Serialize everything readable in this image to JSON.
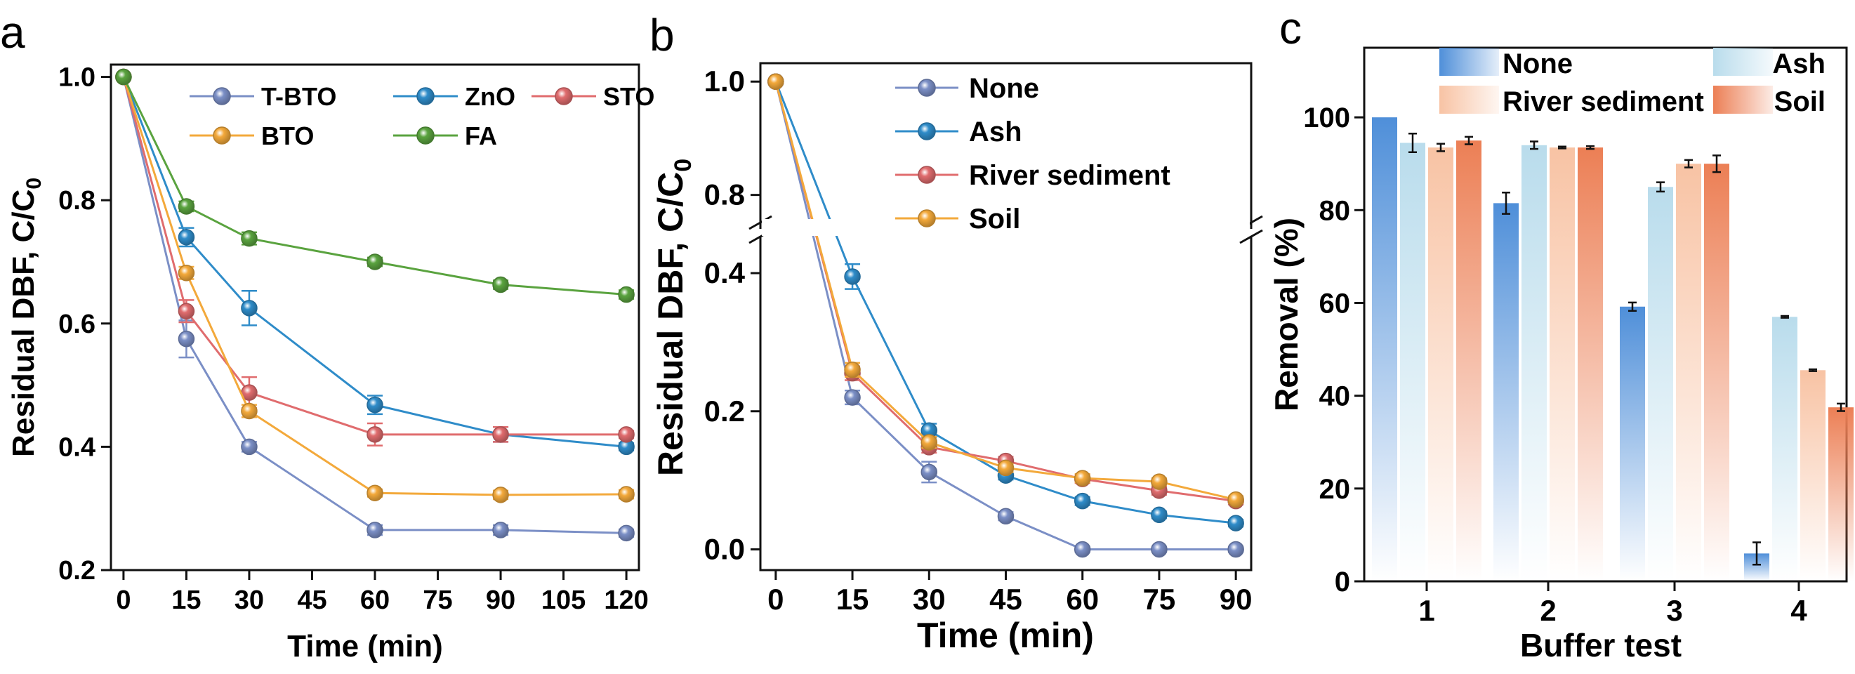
{
  "panels": {
    "a": {
      "label": "a"
    },
    "b": {
      "label": "b"
    },
    "c": {
      "label": "c"
    }
  },
  "chart_data": [
    {
      "id": "a",
      "type": "line",
      "xlabel": "Time (min)",
      "ylabel": "Residual DBF, C/C",
      "ylabel_sub": "0",
      "xlim": [
        -3,
        123
      ],
      "ylim": [
        0.2,
        1.02
      ],
      "xticks": [
        0,
        15,
        30,
        45,
        60,
        75,
        90,
        105,
        120
      ],
      "yticks": [
        0.2,
        0.4,
        0.6,
        0.8,
        1.0
      ],
      "ytick_labels": [
        "0.2",
        "0.4",
        "0.6",
        "0.8",
        "1.0"
      ],
      "x": [
        0,
        15,
        30,
        60,
        90,
        120
      ],
      "series": [
        {
          "name": "T-BTO",
          "color": "#7b8fc6",
          "values": [
            1.0,
            0.575,
            0.4,
            0.265,
            0.265,
            0.26
          ],
          "err": [
            0,
            0.03,
            0.008,
            0.008,
            0.008,
            0.006
          ]
        },
        {
          "name": "ZnO",
          "color": "#2f8cc9",
          "values": [
            1.0,
            0.74,
            0.625,
            0.468,
            0.42,
            0.4
          ],
          "err": [
            0,
            0.015,
            0.028,
            0.015,
            0.012,
            0.006
          ]
        },
        {
          "name": "STO",
          "color": "#e06c6e",
          "values": [
            1.0,
            0.62,
            0.488,
            0.42,
            0.42,
            0.42
          ],
          "err": [
            0,
            0.018,
            0.025,
            0.018,
            0.012,
            0.006
          ]
        },
        {
          "name": "BTO",
          "color": "#f3a93b",
          "values": [
            1.0,
            0.682,
            0.458,
            0.325,
            0.322,
            0.323
          ],
          "err": [
            0,
            0.01,
            0.01,
            0.006,
            0.007,
            0.007
          ]
        },
        {
          "name": "FA",
          "color": "#5aa33f",
          "values": [
            1.0,
            0.79,
            0.738,
            0.7,
            0.663,
            0.647
          ],
          "err": [
            0,
            0.008,
            0.01,
            0.007,
            0.007,
            0.007
          ]
        }
      ],
      "legend": [
        {
          "name": "T-BTO",
          "color": "#7b8fc6"
        },
        {
          "name": "ZnO",
          "color": "#2f8cc9"
        },
        {
          "name": "STO",
          "color": "#e06c6e"
        },
        {
          "name": "BTO",
          "color": "#f3a93b"
        },
        {
          "name": "FA",
          "color": "#5aa33f"
        }
      ]
    },
    {
      "id": "b",
      "type": "line",
      "broken_y_axis": true,
      "xlabel": "Time (min)",
      "ylabel": "Residual DBF, C/C",
      "ylabel_sub": "0",
      "xlim": [
        -3,
        93
      ],
      "ylim_lower": [
        -0.03,
        0.46
      ],
      "ylim_upper": [
        0.75,
        1.03
      ],
      "xticks": [
        0,
        15,
        30,
        45,
        60,
        75,
        90
      ],
      "yticks_lower": [
        0.0,
        0.2,
        0.4
      ],
      "ytick_labels_lower": [
        "0.0",
        "0.2",
        "0.4"
      ],
      "yticks_upper": [
        0.8,
        1.0
      ],
      "ytick_labels_upper": [
        "0.8",
        "1.0"
      ],
      "x": [
        0,
        15,
        30,
        45,
        60,
        75,
        90
      ],
      "series": [
        {
          "name": "None",
          "color": "#7b8fc6",
          "values": [
            1.0,
            0.22,
            0.112,
            0.048,
            0.0,
            0.0,
            0.0
          ],
          "err": [
            0,
            0.01,
            0.015,
            0.006,
            0.004,
            0.004,
            0.004
          ]
        },
        {
          "name": "Ash",
          "color": "#2f8cc9",
          "values": [
            1.0,
            0.395,
            0.172,
            0.107,
            0.07,
            0.05,
            0.038
          ],
          "err": [
            0,
            0.018,
            0.01,
            0.006,
            0.006,
            0.005,
            0.005
          ]
        },
        {
          "name": "River sediment",
          "color": "#e06c6e",
          "values": [
            1.0,
            0.255,
            0.148,
            0.128,
            0.102,
            0.085,
            0.07
          ],
          "err": [
            0,
            0.01,
            0.008,
            0.006,
            0.006,
            0.006,
            0.005
          ]
        },
        {
          "name": "Soil",
          "color": "#f3a93b",
          "values": [
            1.0,
            0.26,
            0.155,
            0.118,
            0.103,
            0.098,
            0.072
          ],
          "err": [
            0,
            0.01,
            0.008,
            0.006,
            0.006,
            0.005,
            0.005
          ]
        }
      ]
    },
    {
      "id": "c",
      "type": "bar",
      "xlabel": "Buffer test",
      "ylabel": "Removal (%)",
      "categories": [
        "1",
        "2",
        "3",
        "4"
      ],
      "ylim": [
        0,
        115
      ],
      "yticks": [
        0,
        20,
        40,
        60,
        80,
        100
      ],
      "series": [
        {
          "name": "None",
          "color": "#4f8fd9",
          "values": [
            100,
            81.5,
            59.2,
            6.0
          ],
          "err": [
            0,
            2.3,
            0.9,
            2.4
          ]
        },
        {
          "name": "Ash",
          "color": "#b9dcec",
          "values": [
            94.5,
            94.0,
            85.0,
            57.0
          ],
          "err": [
            2.0,
            0.8,
            1.0,
            0.2
          ]
        },
        {
          "name": "River sediment",
          "color": "#f8c3a4",
          "values": [
            93.5,
            93.5,
            90.0,
            45.5
          ],
          "err": [
            0.8,
            0.2,
            0.8,
            0.2
          ]
        },
        {
          "name": "Soil",
          "color": "#ec7f55",
          "values": [
            95.0,
            93.5,
            90.0,
            37.5
          ],
          "err": [
            0.8,
            0.3,
            1.8,
            0.8
          ]
        }
      ]
    }
  ]
}
